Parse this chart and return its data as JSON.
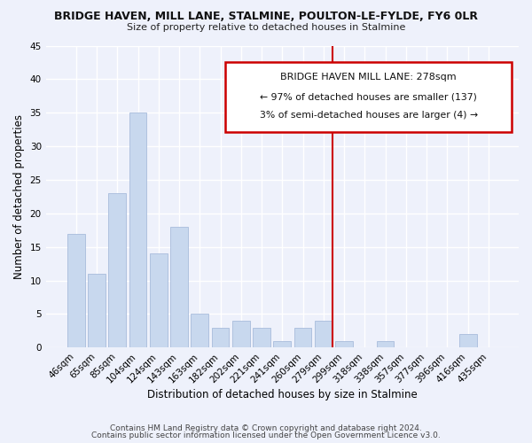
{
  "title": "BRIDGE HAVEN, MILL LANE, STALMINE, POULTON-LE-FYLDE, FY6 0LR",
  "subtitle": "Size of property relative to detached houses in Stalmine",
  "xlabel": "Distribution of detached houses by size in Stalmine",
  "ylabel": "Number of detached properties",
  "bar_labels": [
    "46sqm",
    "65sqm",
    "85sqm",
    "104sqm",
    "124sqm",
    "143sqm",
    "163sqm",
    "182sqm",
    "202sqm",
    "221sqm",
    "241sqm",
    "260sqm",
    "279sqm",
    "299sqm",
    "318sqm",
    "338sqm",
    "357sqm",
    "377sqm",
    "396sqm",
    "416sqm",
    "435sqm"
  ],
  "bar_values": [
    17,
    11,
    23,
    35,
    14,
    18,
    5,
    3,
    4,
    3,
    1,
    3,
    4,
    1,
    0,
    1,
    0,
    0,
    0,
    2,
    0
  ],
  "bar_color": "#c8d8ee",
  "bar_edge_color": "#a8bcdc",
  "vline_color": "#cc0000",
  "ylim": [
    0,
    45
  ],
  "yticks": [
    0,
    5,
    10,
    15,
    20,
    25,
    30,
    35,
    40,
    45
  ],
  "annotation_title": "BRIDGE HAVEN MILL LANE: 278sqm",
  "annotation_line1": "← 97% of detached houses are smaller (137)",
  "annotation_line2": "3% of semi-detached houses are larger (4) →",
  "footer_line1": "Contains HM Land Registry data © Crown copyright and database right 2024.",
  "footer_line2": "Contains public sector information licensed under the Open Government Licence v3.0.",
  "bg_color": "#eef1fb",
  "grid_color": "#ffffff",
  "box_color": "#cc0000",
  "vline_bar_index": 12
}
